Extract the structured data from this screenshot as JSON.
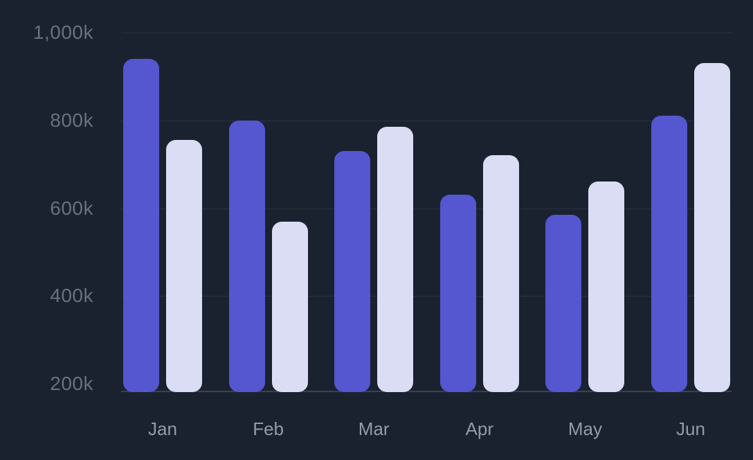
{
  "chart_data": {
    "type": "bar",
    "title": "",
    "categories": [
      "Jan",
      "Feb",
      "Mar",
      "Apr",
      "May",
      "Jun"
    ],
    "series": [
      {
        "name": "series-indigo",
        "color": "#5457CF",
        "values": [
          940,
          800,
          730,
          630,
          585,
          810
        ]
      },
      {
        "name": "series-lavender",
        "color": "#DBDDF5",
        "values": [
          755,
          570,
          785,
          720,
          660,
          930
        ]
      }
    ],
    "unit": "k",
    "xlabel": "",
    "ylabel": "",
    "ytick_labels": [
      "1,000k",
      "800k",
      "600k",
      "400k",
      "200k"
    ],
    "ytick_values": [
      1000,
      800,
      600,
      400,
      200
    ],
    "ylim": [
      200,
      1000
    ],
    "grid": "horizontal",
    "legend": "none"
  },
  "colors": {
    "background": "#1A2230",
    "gridline": "#2A3140",
    "axis_line": "#3A4150",
    "ytick_label": "#69707F",
    "xtick_label": "#949BA8"
  }
}
